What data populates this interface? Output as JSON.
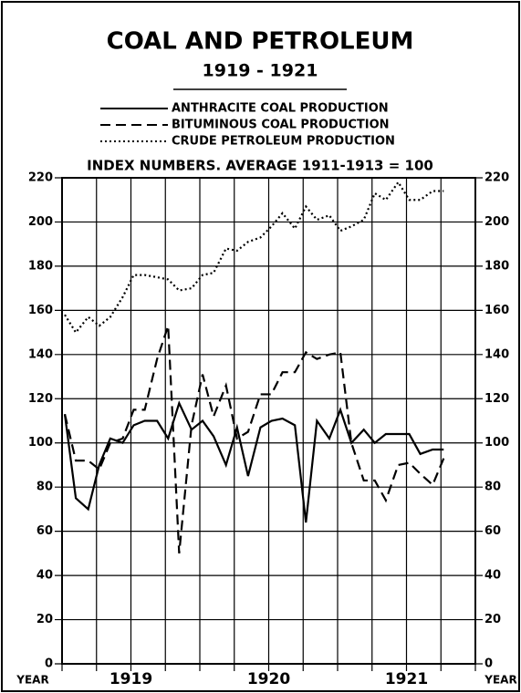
{
  "chart_data": {
    "type": "line",
    "title": "COAL AND PETROLEUM",
    "subtitle": "1919 - 1921",
    "y_label": "INDEX NUMBERS. AVERAGE 1911-1913 = 100",
    "x_label": "YEAR",
    "x": [
      1919.02,
      1919.1,
      1919.19,
      1919.27,
      1919.35,
      1919.44,
      1919.52,
      1919.6,
      1919.69,
      1919.77,
      1919.85,
      1919.94,
      1920.02,
      1920.1,
      1920.19,
      1920.27,
      1920.35,
      1920.44,
      1920.52,
      1920.6,
      1920.69,
      1920.77,
      1920.85,
      1920.94,
      1921.02,
      1921.1,
      1921.19,
      1921.27,
      1921.35,
      1921.44,
      1921.52,
      1921.6,
      1921.69,
      1921.77
    ],
    "series": [
      {
        "name": "ANTHRACITE COAL PRODUCTION",
        "color": "#000000",
        "dash": "solid",
        "values": [
          113,
          75,
          70,
          90,
          102,
          100,
          108,
          110,
          110,
          102,
          118,
          106,
          110,
          103,
          90,
          107,
          85,
          107,
          110,
          111,
          108,
          64,
          110,
          102,
          115,
          100,
          106,
          100,
          104,
          104,
          104,
          95,
          97,
          97
        ]
      },
      {
        "name": "BITUMINOUS COAL PRODUCTION",
        "color": "#000000",
        "dash": "dashed",
        "values": [
          113,
          92,
          92,
          88,
          100,
          102,
          115,
          115,
          138,
          153,
          50,
          108,
          131,
          112,
          126,
          102,
          105,
          122,
          122,
          132,
          132,
          141,
          138,
          140,
          141,
          100,
          83,
          83,
          74,
          90,
          91,
          86,
          81,
          93
        ]
      },
      {
        "name": "CRUDE PETROLEUM PRODUCTION",
        "color": "#000000",
        "dash": "dotted",
        "values": [
          158,
          150,
          157,
          153,
          157,
          166,
          176,
          176,
          175,
          174,
          169,
          170,
          176,
          177,
          188,
          187,
          191,
          193,
          198,
          204,
          197,
          207,
          201,
          203,
          196,
          198,
          201,
          213,
          210,
          218,
          210,
          210,
          214,
          214
        ]
      }
    ],
    "xlim": [
      1919,
      1922
    ],
    "xticks": [
      {
        "value": 1919.5,
        "label": "1919"
      },
      {
        "value": 1920.5,
        "label": "1920"
      },
      {
        "value": 1921.5,
        "label": "1921"
      }
    ],
    "x_grid_lines": [
      1919,
      1919.25,
      1919.5,
      1919.75,
      1920,
      1920.25,
      1920.5,
      1920.75,
      1921,
      1921.25,
      1921.5,
      1921.75,
      1922
    ],
    "ylim": [
      0,
      220
    ],
    "yticks": [
      0,
      20,
      40,
      60,
      80,
      100,
      120,
      140,
      160,
      180,
      200,
      220
    ],
    "grid": true
  }
}
